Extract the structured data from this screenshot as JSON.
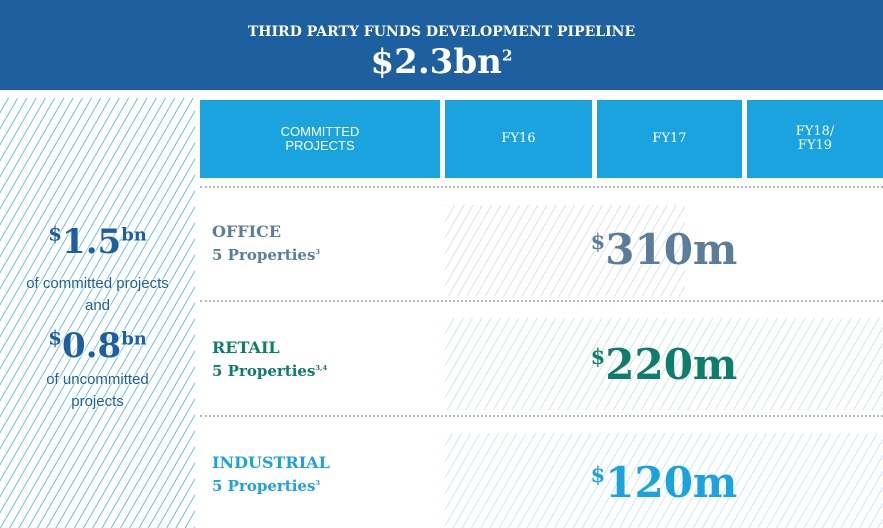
{
  "header": {
    "title": "THIRD PARTY FUNDS DEVELOPMENT PIPELINE",
    "total": "$2.3bn",
    "total_note": "2"
  },
  "summary": {
    "items": [
      {
        "currency": "$",
        "amount": "1.5",
        "unit": "bn",
        "caption": "of committed projects"
      },
      {
        "currency": "$",
        "amount": "0.8",
        "unit": "bn",
        "caption": "of uncommitted projects"
      }
    ],
    "connector": "and"
  },
  "columns": [
    "COMMITTED PROJECTS",
    "FY16",
    "FY17",
    "FY18/ FY19"
  ],
  "rows": [
    {
      "sector": "OFFICE",
      "detail": "5 Properties",
      "note": "3",
      "currency": "$",
      "value": "310m"
    },
    {
      "sector": "RETAIL",
      "detail": "5 Properties",
      "note": "3,4",
      "currency": "$",
      "value": "220m"
    },
    {
      "sector": "INDUSTRIAL",
      "detail": "5 Properties",
      "note": "3",
      "currency": "$",
      "value": "120m"
    }
  ]
}
